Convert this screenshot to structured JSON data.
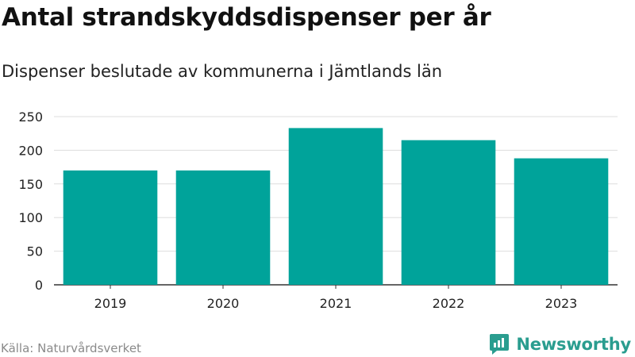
{
  "header": {
    "title": "Antal strandskyddsdispenser per år",
    "subtitle": "Dispenser beslutade av kommunerna i Jämtlands län"
  },
  "footer": {
    "source": "Källa: Naturvårdsverket",
    "brand": "Newsworthy",
    "brand_icon": "newsworthy-logo-icon"
  },
  "colors": {
    "bar": "#00a39a",
    "grid": "#dddddd",
    "axis": "#333333",
    "brand": "#2a9d8f"
  },
  "chart_data": {
    "type": "bar",
    "title": "Antal strandskyddsdispenser per år",
    "subtitle": "Dispenser beslutade av kommunerna i Jämtlands län",
    "categories": [
      "2019",
      "2020",
      "2021",
      "2022",
      "2023"
    ],
    "values": [
      170,
      170,
      233,
      215,
      188
    ],
    "xlabel": "",
    "ylabel": "",
    "ylim": [
      0,
      250
    ],
    "yticks": [
      0,
      50,
      100,
      150,
      200,
      250
    ],
    "grid": true,
    "legend": "none"
  }
}
